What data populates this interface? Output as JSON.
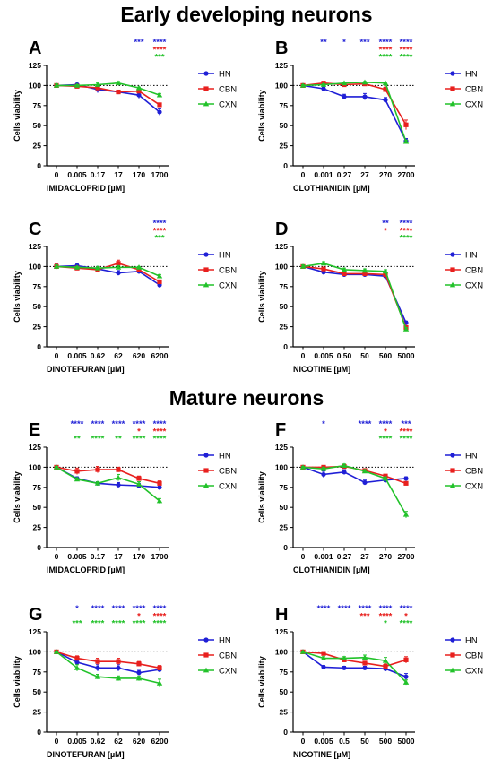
{
  "titles": {
    "top": "Early developing neurons",
    "middle": "Mature neurons"
  },
  "colors": {
    "HN": "#1f1fd6",
    "CBN": "#e8201e",
    "CXN": "#22c22a"
  },
  "chart_data": [
    {
      "panel": "A",
      "type": "line",
      "xlabel": "IMIDACLOPRID [µM]",
      "ylabel": "Cells viability",
      "categories": [
        "0",
        "0.005",
        "0.17",
        "17",
        "170",
        "1700"
      ],
      "ylim": [
        0,
        125
      ],
      "yticks": [
        0,
        25,
        50,
        75,
        100,
        125
      ],
      "series": [
        {
          "name": "HN",
          "values": [
            100,
            101,
            95,
            92,
            88,
            67
          ],
          "err": [
            2,
            1,
            4,
            2,
            4,
            4
          ]
        },
        {
          "name": "CBN",
          "values": [
            100,
            99,
            97,
            92,
            93,
            76
          ],
          "err": [
            2,
            1,
            3,
            2,
            2,
            2
          ]
        },
        {
          "name": "CXN",
          "values": [
            100,
            100,
            101,
            103,
            97,
            88
          ],
          "err": [
            2,
            1,
            2,
            2,
            1,
            2
          ]
        }
      ],
      "sig": [
        [],
        [],
        [],
        [],
        [
          {
            "t": "***",
            "c": "HN"
          }
        ],
        [
          {
            "t": "****",
            "c": "HN"
          },
          {
            "t": "****",
            "c": "CBN"
          },
          {
            "t": "***",
            "c": "CXN"
          }
        ]
      ]
    },
    {
      "panel": "B",
      "type": "line",
      "xlabel": "CLOTHIANIDIN [µM]",
      "ylabel": "Cells viability",
      "categories": [
        "0",
        "0.001",
        "0.27",
        "27",
        "270",
        "2700"
      ],
      "ylim": [
        0,
        125
      ],
      "yticks": [
        0,
        25,
        50,
        75,
        100,
        125
      ],
      "series": [
        {
          "name": "HN",
          "values": [
            100,
            96,
            86,
            86,
            82,
            31
          ],
          "err": [
            2,
            2,
            3,
            4,
            3,
            3
          ]
        },
        {
          "name": "CBN",
          "values": [
            100,
            103,
            101,
            102,
            95,
            51
          ],
          "err": [
            2,
            2,
            2,
            2,
            3,
            6
          ]
        },
        {
          "name": "CXN",
          "values": [
            100,
            101,
            103,
            104,
            103,
            30
          ],
          "err": [
            1,
            1,
            1,
            1,
            1,
            2
          ]
        }
      ],
      "sig": [
        [],
        [
          {
            "t": "**",
            "c": "HN"
          }
        ],
        [
          {
            "t": "*",
            "c": "HN"
          }
        ],
        [
          {
            "t": "***",
            "c": "HN"
          }
        ],
        [
          {
            "t": "****",
            "c": "HN"
          },
          {
            "t": "****",
            "c": "CBN"
          },
          {
            "t": "****",
            "c": "CXN"
          }
        ],
        [
          {
            "t": "****",
            "c": "HN"
          },
          {
            "t": "****",
            "c": "CBN"
          },
          {
            "t": "****",
            "c": "CXN"
          }
        ]
      ]
    },
    {
      "panel": "C",
      "type": "line",
      "xlabel": "DINOTEFURAN [µM]",
      "ylabel": "Cells viability",
      "categories": [
        "0",
        "0.005",
        "0.62",
        "62",
        "620",
        "6200"
      ],
      "ylim": [
        0,
        125
      ],
      "yticks": [
        0,
        25,
        50,
        75,
        100,
        125
      ],
      "series": [
        {
          "name": "HN",
          "values": [
            100,
            101,
            97,
            92,
            94,
            77
          ],
          "err": [
            3,
            2,
            3,
            3,
            3,
            3
          ]
        },
        {
          "name": "CBN",
          "values": [
            100,
            98,
            96,
            104,
            96,
            81
          ],
          "err": [
            3,
            2,
            2,
            4,
            2,
            2
          ]
        },
        {
          "name": "CXN",
          "values": [
            100,
            99,
            98,
            99,
            99,
            88
          ],
          "err": [
            2,
            1,
            2,
            2,
            1,
            2
          ]
        }
      ],
      "sig": [
        [],
        [],
        [],
        [],
        [],
        [
          {
            "t": "****",
            "c": "HN"
          },
          {
            "t": "****",
            "c": "CBN"
          },
          {
            "t": "***",
            "c": "CXN"
          }
        ]
      ]
    },
    {
      "panel": "D",
      "type": "line",
      "xlabel": "NICOTINE [µM]",
      "ylabel": "Cells viability",
      "categories": [
        "0",
        "0.005",
        "0.50",
        "50",
        "500",
        "5000"
      ],
      "ylim": [
        0,
        125
      ],
      "yticks": [
        0,
        25,
        50,
        75,
        100,
        125
      ],
      "series": [
        {
          "name": "HN",
          "values": [
            100,
            93,
            90,
            90,
            88,
            30
          ],
          "err": [
            2,
            3,
            3,
            2,
            2,
            2
          ]
        },
        {
          "name": "CBN",
          "values": [
            100,
            97,
            91,
            91,
            90,
            24
          ],
          "err": [
            2,
            2,
            2,
            2,
            2,
            2
          ]
        },
        {
          "name": "CXN",
          "values": [
            100,
            104,
            96,
            95,
            94,
            22
          ],
          "err": [
            2,
            2,
            2,
            2,
            2,
            2
          ]
        }
      ],
      "sig": [
        [],
        [],
        [],
        [],
        [
          {
            "t": "**",
            "c": "HN"
          },
          {
            "t": "*",
            "c": "CBN"
          }
        ],
        [
          {
            "t": "****",
            "c": "HN"
          },
          {
            "t": "****",
            "c": "CBN"
          },
          {
            "t": "****",
            "c": "CXN"
          }
        ]
      ]
    },
    {
      "panel": "E",
      "type": "line",
      "xlabel": "IMIDACLOPRID [µM]",
      "ylabel": "Cells viability",
      "categories": [
        "0",
        "0.005",
        "0.17",
        "17",
        "170",
        "1700"
      ],
      "ylim": [
        0,
        125
      ],
      "yticks": [
        0,
        25,
        50,
        75,
        100,
        125
      ],
      "series": [
        {
          "name": "HN",
          "values": [
            100,
            86,
            80,
            78,
            77,
            75
          ],
          "err": [
            1,
            2,
            2,
            3,
            3,
            3
          ]
        },
        {
          "name": "CBN",
          "values": [
            100,
            95,
            97,
            97,
            86,
            80
          ],
          "err": [
            1,
            4,
            4,
            3,
            3,
            3
          ]
        },
        {
          "name": "CXN",
          "values": [
            100,
            85,
            80,
            87,
            79,
            58
          ],
          "err": [
            1,
            2,
            2,
            4,
            3,
            3
          ]
        }
      ],
      "sig": [
        [],
        [
          {
            "t": "****",
            "c": "HN"
          },
          {
            "t": "**",
            "c": "CXN"
          }
        ],
        [
          {
            "t": "****",
            "c": "HN"
          },
          {
            "t": "****",
            "c": "CXN"
          }
        ],
        [
          {
            "t": "****",
            "c": "HN"
          },
          {
            "t": "**",
            "c": "CXN"
          }
        ],
        [
          {
            "t": "****",
            "c": "HN"
          },
          {
            "t": "*",
            "c": "CBN"
          },
          {
            "t": "****",
            "c": "CXN"
          }
        ],
        [
          {
            "t": "****",
            "c": "HN"
          },
          {
            "t": "****",
            "c": "CBN"
          },
          {
            "t": "****",
            "c": "CXN"
          }
        ]
      ]
    },
    {
      "panel": "F",
      "type": "line",
      "xlabel": "CLOTHIANIDIN [µM]",
      "ylabel": "Cells viability",
      "categories": [
        "0",
        "0.001",
        "0.27",
        "27",
        "270",
        "2700"
      ],
      "ylim": [
        0,
        125
      ],
      "yticks": [
        0,
        25,
        50,
        75,
        100,
        125
      ],
      "series": [
        {
          "name": "HN",
          "values": [
            100,
            91,
            94,
            81,
            84,
            86
          ],
          "err": [
            1,
            4,
            3,
            3,
            3,
            2
          ]
        },
        {
          "name": "CBN",
          "values": [
            100,
            100,
            101,
            96,
            89,
            80
          ],
          "err": [
            1,
            2,
            2,
            2,
            2,
            2
          ]
        },
        {
          "name": "CXN",
          "values": [
            100,
            98,
            102,
            95,
            86,
            41
          ],
          "err": [
            1,
            2,
            2,
            2,
            2,
            4
          ]
        }
      ],
      "sig": [
        [],
        [
          {
            "t": "*",
            "c": "HN"
          }
        ],
        [],
        [
          {
            "t": "****",
            "c": "HN"
          }
        ],
        [
          {
            "t": "****",
            "c": "HN"
          },
          {
            "t": "*",
            "c": "CBN"
          },
          {
            "t": "****",
            "c": "CXN"
          }
        ],
        [
          {
            "t": "***",
            "c": "HN"
          },
          {
            "t": "****",
            "c": "CBN"
          },
          {
            "t": "****",
            "c": "CXN"
          }
        ]
      ]
    },
    {
      "panel": "G",
      "type": "line",
      "xlabel": "DINOTEFURAN [µM]",
      "ylabel": "Cells viability",
      "categories": [
        "0",
        "0.005",
        "0.62",
        "62",
        "620",
        "6200"
      ],
      "ylim": [
        0,
        125
      ],
      "yticks": [
        0,
        25,
        50,
        75,
        100,
        125
      ],
      "series": [
        {
          "name": "HN",
          "values": [
            100,
            87,
            80,
            80,
            74,
            78
          ],
          "err": [
            1,
            3,
            4,
            4,
            3,
            3
          ]
        },
        {
          "name": "CBN",
          "values": [
            100,
            92,
            88,
            88,
            85,
            80
          ],
          "err": [
            1,
            3,
            4,
            4,
            3,
            3
          ]
        },
        {
          "name": "CXN",
          "values": [
            100,
            80,
            69,
            67,
            67,
            61
          ],
          "err": [
            1,
            4,
            3,
            3,
            3,
            5
          ]
        }
      ],
      "sig": [
        [],
        [
          {
            "t": "*",
            "c": "HN"
          },
          {
            "t": "***",
            "c": "CXN"
          }
        ],
        [
          {
            "t": "****",
            "c": "HN"
          },
          {
            "t": "****",
            "c": "CXN"
          }
        ],
        [
          {
            "t": "****",
            "c": "HN"
          },
          {
            "t": "****",
            "c": "CXN"
          }
        ],
        [
          {
            "t": "****",
            "c": "HN"
          },
          {
            "t": "*",
            "c": "CBN"
          },
          {
            "t": "****",
            "c": "CXN"
          }
        ],
        [
          {
            "t": "****",
            "c": "HN"
          },
          {
            "t": "****",
            "c": "CBN"
          },
          {
            "t": "****",
            "c": "CXN"
          }
        ]
      ]
    },
    {
      "panel": "H",
      "type": "line",
      "xlabel": "NICOTINE [µM]",
      "ylabel": "Cells viability",
      "categories": [
        "0",
        "0.005",
        "0.5",
        "50",
        "500",
        "5000"
      ],
      "ylim": [
        0,
        125
      ],
      "yticks": [
        0,
        25,
        50,
        75,
        100,
        125
      ],
      "series": [
        {
          "name": "HN",
          "values": [
            100,
            81,
            80,
            80,
            79,
            69
          ],
          "err": [
            1,
            2,
            2,
            2,
            3,
            4
          ]
        },
        {
          "name": "CBN",
          "values": [
            100,
            98,
            90,
            86,
            82,
            90
          ],
          "err": [
            1,
            2,
            2,
            2,
            3,
            4
          ]
        },
        {
          "name": "CXN",
          "values": [
            100,
            92,
            92,
            93,
            89,
            62
          ],
          "err": [
            1,
            2,
            2,
            3,
            4,
            3
          ]
        }
      ],
      "sig": [
        [],
        [
          {
            "t": "****",
            "c": "HN"
          }
        ],
        [
          {
            "t": "****",
            "c": "HN"
          }
        ],
        [
          {
            "t": "****",
            "c": "HN"
          },
          {
            "t": "***",
            "c": "CBN"
          }
        ],
        [
          {
            "t": "****",
            "c": "HN"
          },
          {
            "t": "****",
            "c": "CBN"
          },
          {
            "t": "*",
            "c": "CXN"
          }
        ],
        [
          {
            "t": "****",
            "c": "HN"
          },
          {
            "t": "*",
            "c": "CBN"
          },
          {
            "t": "****",
            "c": "CXN"
          }
        ]
      ]
    }
  ]
}
